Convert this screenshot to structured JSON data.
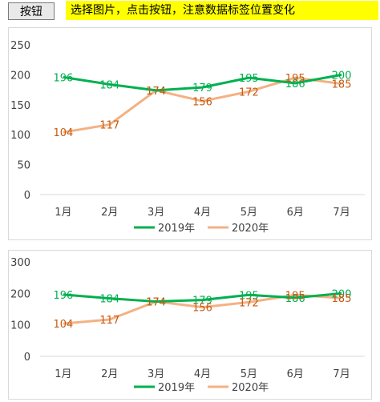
{
  "toolbar": {
    "button_label": "按钮"
  },
  "notice": {
    "text": "选择图片，点击按钮，注意数据标签位置变化"
  },
  "colors": {
    "series2019": "#00b050",
    "series2020": "#f4b183",
    "label2020": "#c55a11"
  },
  "chart_data": [
    {
      "type": "line",
      "categories": [
        "1月",
        "2月",
        "3月",
        "4月",
        "5月",
        "6月",
        "7月"
      ],
      "series": [
        {
          "name": "2019年",
          "values": [
            196,
            184,
            174,
            179,
            195,
            186,
            200
          ]
        },
        {
          "name": "2020年",
          "values": [
            104,
            117,
            174,
            156,
            172,
            195,
            185
          ]
        }
      ],
      "ylim": [
        0,
        250
      ],
      "yticks": [
        0,
        50,
        100,
        150,
        200,
        250
      ],
      "grid": false,
      "legend": "bottom",
      "data_labels": true
    },
    {
      "type": "line",
      "categories": [
        "1月",
        "2月",
        "3月",
        "4月",
        "5月",
        "6月",
        "7月"
      ],
      "series": [
        {
          "name": "2019年",
          "values": [
            196,
            184,
            174,
            179,
            195,
            186,
            200
          ]
        },
        {
          "name": "2020年",
          "values": [
            104,
            117,
            174,
            156,
            172,
            195,
            185
          ]
        }
      ],
      "ylim": [
        0,
        300
      ],
      "yticks": [
        0,
        100,
        200,
        300
      ],
      "grid": false,
      "legend": "bottom",
      "data_labels": true
    }
  ]
}
